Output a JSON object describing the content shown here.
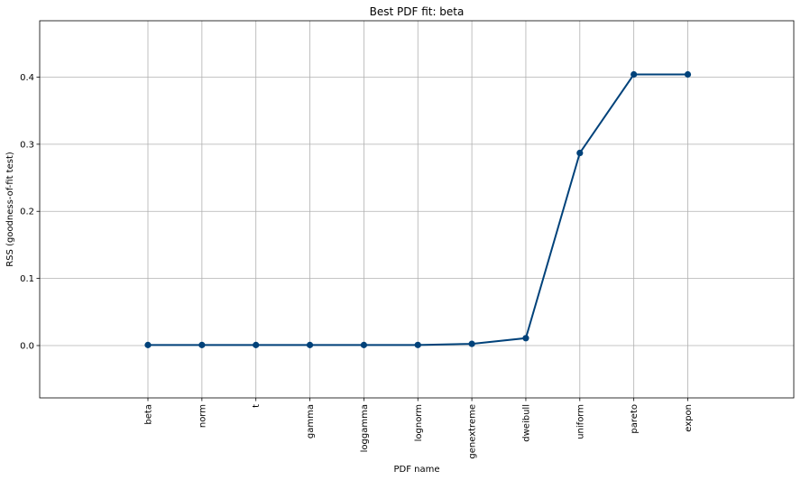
{
  "chart_data": {
    "type": "line",
    "title": "Best PDF fit: beta",
    "xlabel": "PDF name",
    "ylabel": "RSS (goodness-of-fit test)",
    "categories": [
      "beta",
      "norm",
      "t",
      "gamma",
      "loggamma",
      "lognorm",
      "genextreme",
      "dweibull",
      "uniform",
      "pareto",
      "expon"
    ],
    "series": [
      {
        "values": [
          0.0008,
          0.0008,
          0.0008,
          0.0008,
          0.0008,
          0.0009,
          0.0025,
          0.011,
          0.287,
          0.404,
          0.404
        ]
      }
    ],
    "ylim": [
      -0.078,
      0.484
    ],
    "yticks": [
      0.0,
      0.1,
      0.2,
      0.3,
      0.4
    ],
    "ytick_labels": [
      "0.0",
      "0.1",
      "0.2",
      "0.3",
      "0.4"
    ],
    "grid": true,
    "line_color": "#00427a",
    "marker": "circle"
  }
}
